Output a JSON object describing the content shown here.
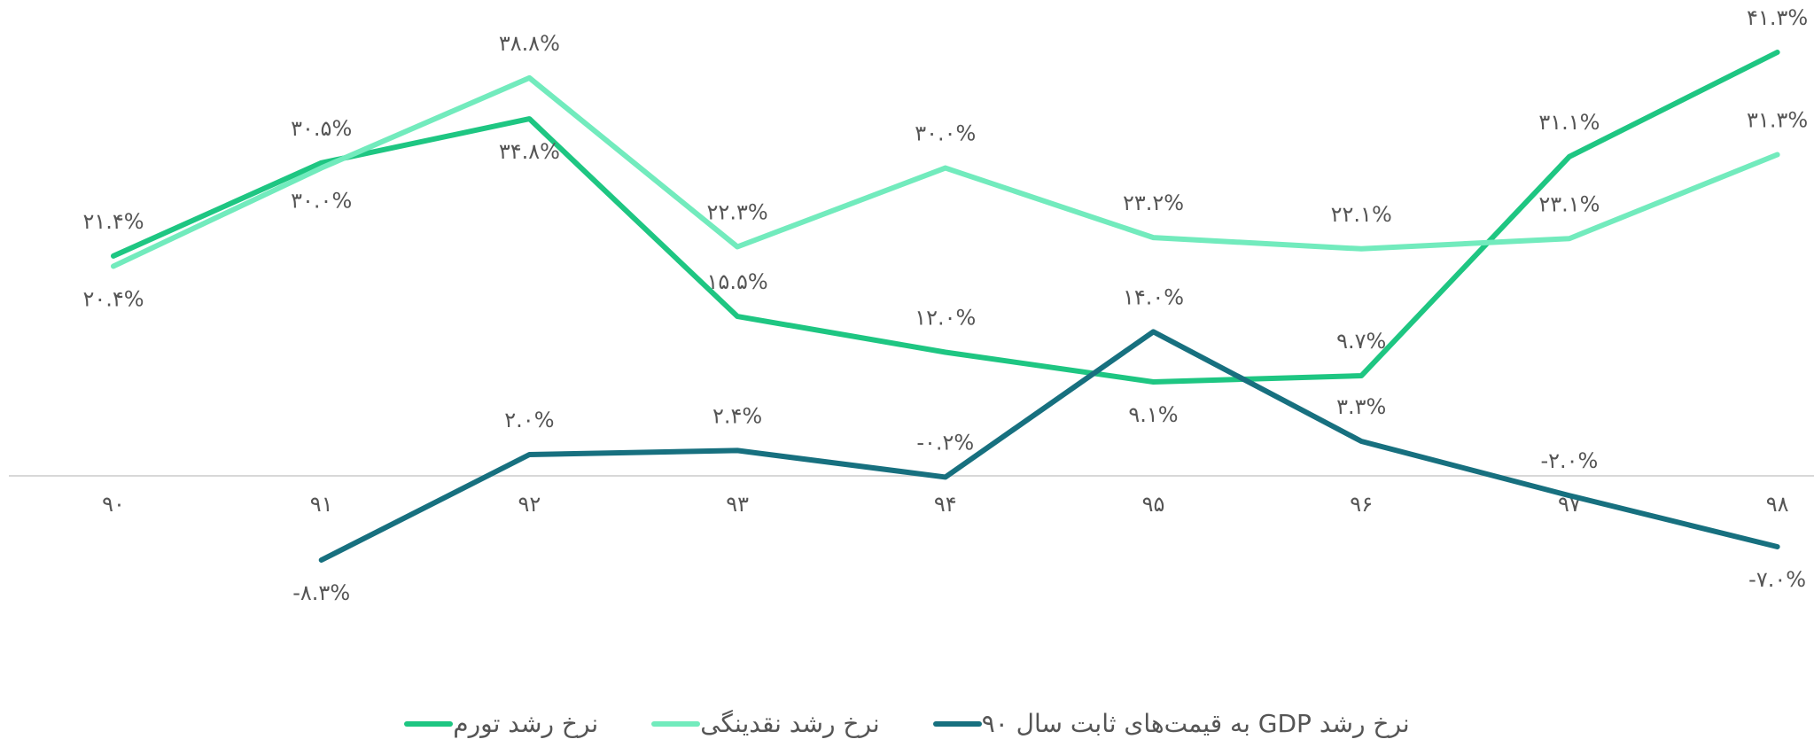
{
  "chart_data": {
    "type": "line",
    "categories": [
      "۹۰",
      "۹۱",
      "۹۲",
      "۹۳",
      "۹۴",
      "۹۵",
      "۹۶",
      "۹۷",
      "۹۸"
    ],
    "series": [
      {
        "name": "نرخ رشد تورم",
        "color": "#1ec682",
        "values": [
          21.4,
          30.5,
          34.8,
          15.5,
          12.0,
          9.1,
          9.7,
          31.1,
          41.3
        ],
        "value_labels": [
          "۲۱.۴%",
          "۳۰.۵%",
          "۳۴.۸%",
          "۱۵.۵%",
          "۱۲.۰%",
          "۹.۱%",
          "۹.۷%",
          "۳۱.۱%",
          "۴۱.۳%"
        ]
      },
      {
        "name": "نرخ رشد نقدینگی",
        "color": "#72ebbd",
        "values": [
          20.4,
          30.0,
          38.8,
          22.3,
          30.0,
          23.2,
          22.1,
          23.1,
          31.3
        ],
        "value_labels": [
          "۲۰.۴%",
          "۳۰.۰%",
          "۳۸.۸%",
          "۲۲.۳%",
          "۳۰.۰%",
          "۲۳.۲%",
          "۲۲.۱%",
          "۲۳.۱%",
          "۳۱.۳%"
        ]
      },
      {
        "name": "نرخ رشد GDP به قیمت‌های ثابت سال ۹۰",
        "color": "#17707f",
        "values": [
          null,
          -8.3,
          2.0,
          2.4,
          -0.2,
          14.0,
          3.3,
          -2.0,
          -7.0
        ],
        "value_labels": [
          null,
          "-۸.۳%",
          "۲.۰%",
          "۲.۴%",
          "-۰.۲%",
          "۱۴.۰%",
          "۳.۳%",
          "-۲.۰%",
          "-۷.۰%"
        ]
      }
    ]
  }
}
